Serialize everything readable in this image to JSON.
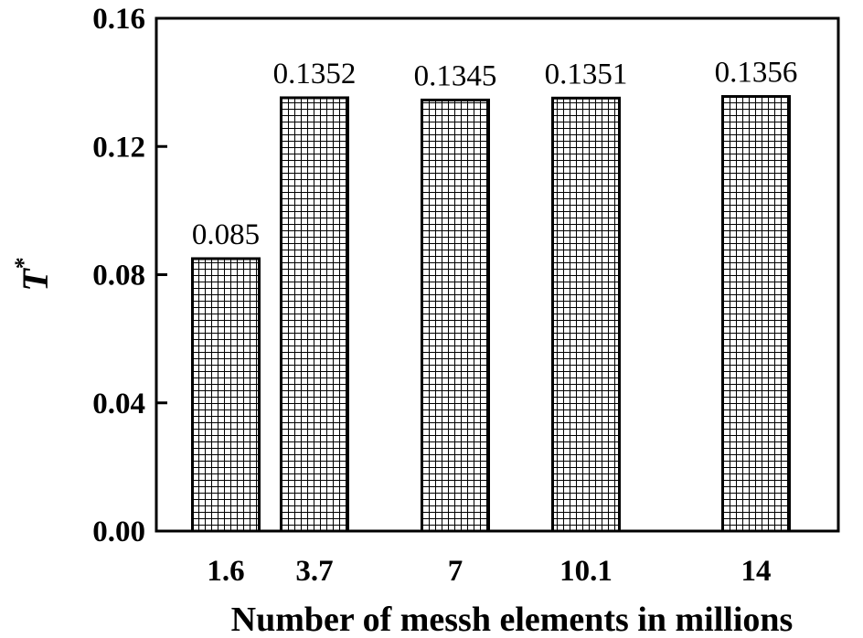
{
  "chart_data": {
    "type": "bar",
    "x": [
      1.6,
      3.7,
      7,
      10.1,
      14
    ],
    "categories": [
      "1.6",
      "3.7",
      "7",
      "10.1",
      "14"
    ],
    "values": [
      0.085,
      0.1352,
      0.1345,
      0.1351,
      0.1356
    ],
    "data_labels": [
      "0.085",
      "0.1352",
      "0.1345",
      "0.1351",
      "0.1356"
    ],
    "xlabel": "Number of messh elements in millions",
    "ylabel": "T",
    "ylabel_superscript": "*",
    "ylim": [
      0,
      0.16
    ],
    "yticks": [
      "0.00",
      "0.04",
      "0.08",
      "0.12",
      "0.16"
    ],
    "grid": false,
    "bar_fill": "crosshatch"
  }
}
